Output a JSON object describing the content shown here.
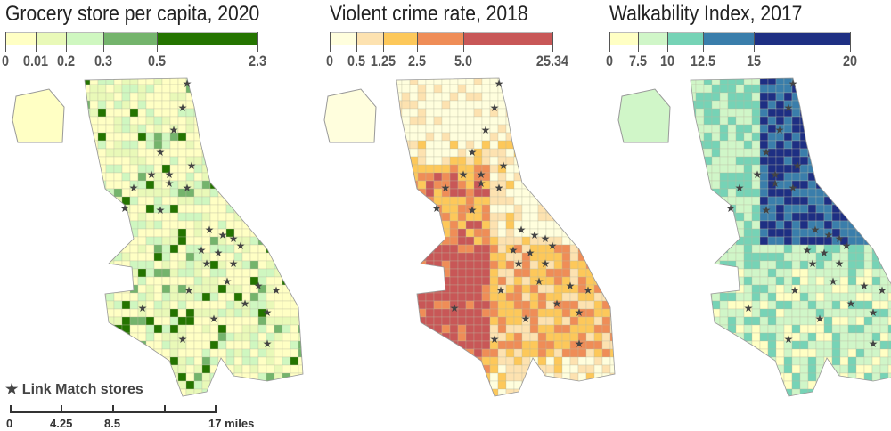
{
  "panels": [
    {
      "title": "Grocery store per capita, 2020",
      "breaks": [
        "0",
        "0.01",
        "0.2",
        "0.3",
        "0.5",
        "2.3"
      ],
      "colors": [
        "#ffffc4",
        "#e9f9b8",
        "#cff7c0",
        "#74b46c",
        "#247400"
      ],
      "pattern": "grocery"
    },
    {
      "title": "Violent crime rate, 2018",
      "breaks": [
        "0",
        "0.5",
        "1.25",
        "2.5",
        "5.0",
        "25.34"
      ],
      "colors": [
        "#fffedd",
        "#fde2b0",
        "#fdc85a",
        "#ef8d57",
        "#c85757"
      ],
      "pattern": "crime"
    },
    {
      "title": "Walkability Index, 2017",
      "breaks": [
        "0",
        "7.5",
        "10",
        "12.5",
        "15",
        "20"
      ],
      "colors": [
        "#ffffc4",
        "#d0f6c8",
        "#76d3b6",
        "#3a7eab",
        "#1e2f83"
      ],
      "pattern": "walk"
    }
  ],
  "store_legend": {
    "icon": "star-icon",
    "label": "Link Match stores",
    "marker_color": "#444444"
  },
  "scale_bar": {
    "labels": [
      "0",
      "4.25",
      "8.5",
      "17 miles"
    ]
  }
}
